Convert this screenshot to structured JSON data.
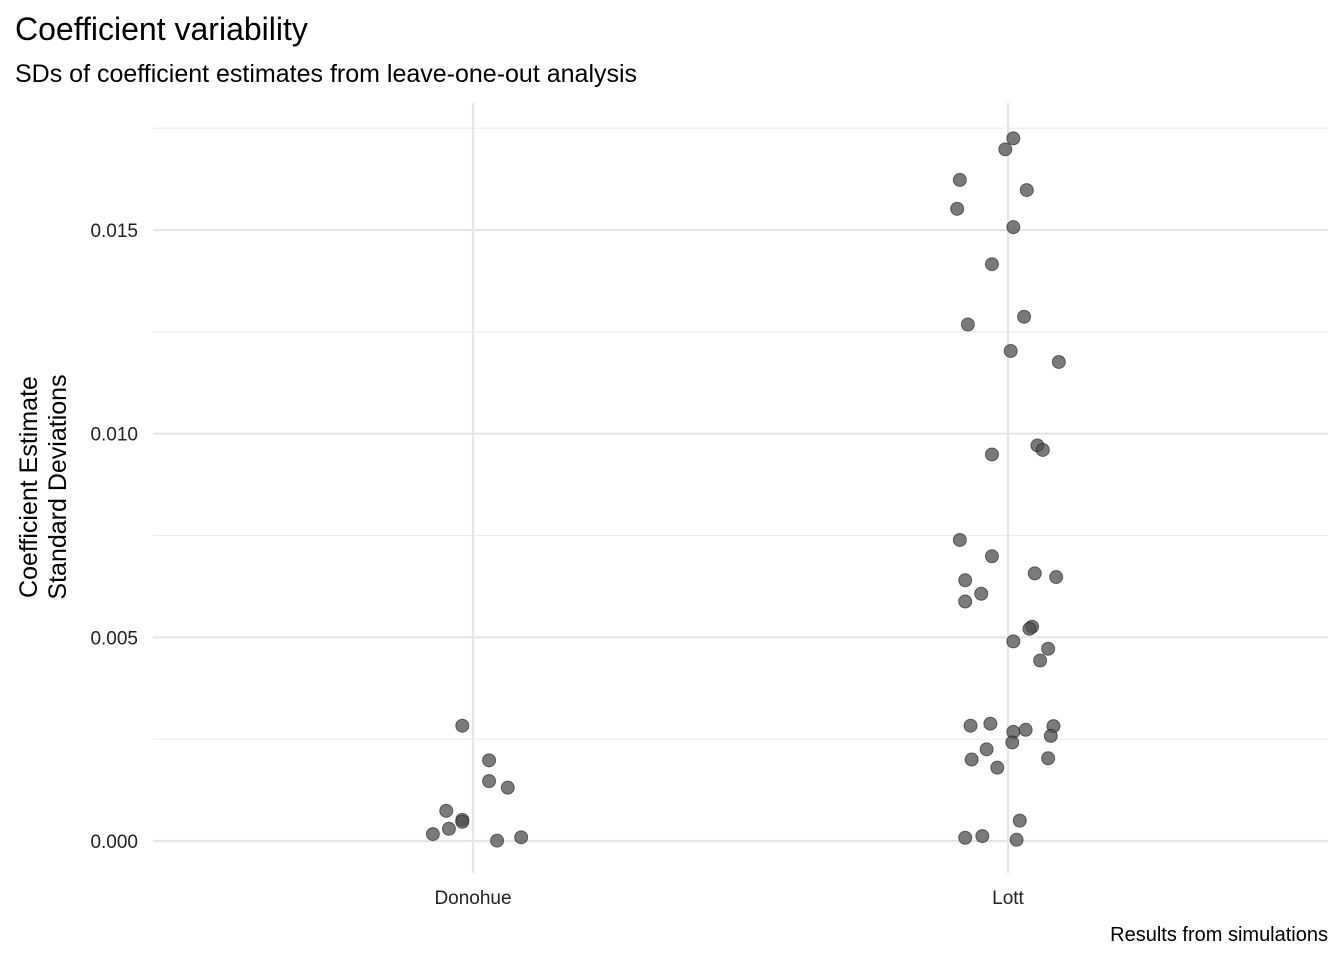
{
  "chart_data": {
    "type": "scatter",
    "title": "Coefficient variability",
    "subtitle": "SDs of coefficient estimates from leave-one-out analysis",
    "ylabel_lines": [
      "Coefficient Estimate",
      "Standard Deviations"
    ],
    "xlabel": "",
    "caption": "Results from simulations",
    "categories": [
      "Donohue",
      "Lott"
    ],
    "ylim": [
      -0.0008,
      0.0175
    ],
    "yticks": [
      0.0,
      0.005,
      0.01,
      0.015
    ],
    "ytick_labels": [
      "0.000",
      "0.005",
      "0.010",
      "0.015"
    ],
    "grid": true,
    "point_color": "#4d4d4d",
    "series": [
      {
        "category": "Donohue",
        "points": [
          {
            "jitter": -0.02,
            "y": 0.00283
          },
          {
            "jitter": 0.03,
            "y": 0.00198
          },
          {
            "jitter": 0.03,
            "y": 0.00147
          },
          {
            "jitter": 0.065,
            "y": 0.00131
          },
          {
            "jitter": -0.05,
            "y": 0.00074
          },
          {
            "jitter": -0.02,
            "y": 0.00052
          },
          {
            "jitter": -0.02,
            "y": 0.00047
          },
          {
            "jitter": -0.045,
            "y": 0.0003
          },
          {
            "jitter": -0.075,
            "y": 0.00017
          },
          {
            "jitter": 0.09,
            "y": 9e-05
          },
          {
            "jitter": 0.045,
            "y": 1e-05
          }
        ]
      },
      {
        "category": "Lott",
        "points": [
          {
            "jitter": 0.01,
            "y": 0.01725
          },
          {
            "jitter": -0.005,
            "y": 0.01698
          },
          {
            "jitter": -0.09,
            "y": 0.01623
          },
          {
            "jitter": 0.035,
            "y": 0.01598
          },
          {
            "jitter": -0.095,
            "y": 0.01552
          },
          {
            "jitter": 0.01,
            "y": 0.01507
          },
          {
            "jitter": -0.03,
            "y": 0.01416
          },
          {
            "jitter": 0.03,
            "y": 0.01287
          },
          {
            "jitter": -0.075,
            "y": 0.01268
          },
          {
            "jitter": 0.005,
            "y": 0.01203
          },
          {
            "jitter": 0.095,
            "y": 0.01176
          },
          {
            "jitter": 0.055,
            "y": 0.00971
          },
          {
            "jitter": 0.065,
            "y": 0.0096
          },
          {
            "jitter": -0.03,
            "y": 0.00949
          },
          {
            "jitter": -0.09,
            "y": 0.00739
          },
          {
            "jitter": -0.03,
            "y": 0.00699
          },
          {
            "jitter": 0.05,
            "y": 0.00657
          },
          {
            "jitter": 0.09,
            "y": 0.00648
          },
          {
            "jitter": -0.08,
            "y": 0.0064
          },
          {
            "jitter": -0.05,
            "y": 0.00607
          },
          {
            "jitter": -0.08,
            "y": 0.00588
          },
          {
            "jitter": 0.045,
            "y": 0.00526
          },
          {
            "jitter": 0.04,
            "y": 0.00521
          },
          {
            "jitter": 0.01,
            "y": 0.0049
          },
          {
            "jitter": 0.075,
            "y": 0.00472
          },
          {
            "jitter": 0.06,
            "y": 0.00443
          },
          {
            "jitter": -0.07,
            "y": 0.00283
          },
          {
            "jitter": -0.033,
            "y": 0.00288
          },
          {
            "jitter": 0.01,
            "y": 0.00268
          },
          {
            "jitter": 0.033,
            "y": 0.00273
          },
          {
            "jitter": 0.085,
            "y": 0.00282
          },
          {
            "jitter": 0.08,
            "y": 0.00258
          },
          {
            "jitter": 0.008,
            "y": 0.00242
          },
          {
            "jitter": -0.04,
            "y": 0.00225
          },
          {
            "jitter": -0.068,
            "y": 0.002
          },
          {
            "jitter": 0.075,
            "y": 0.00203
          },
          {
            "jitter": -0.02,
            "y": 0.0018
          },
          {
            "jitter": 0.022,
            "y": 0.0005
          },
          {
            "jitter": -0.048,
            "y": 0.00012
          },
          {
            "jitter": -0.08,
            "y": 8e-05
          },
          {
            "jitter": 0.016,
            "y": 3e-05
          }
        ]
      }
    ]
  }
}
